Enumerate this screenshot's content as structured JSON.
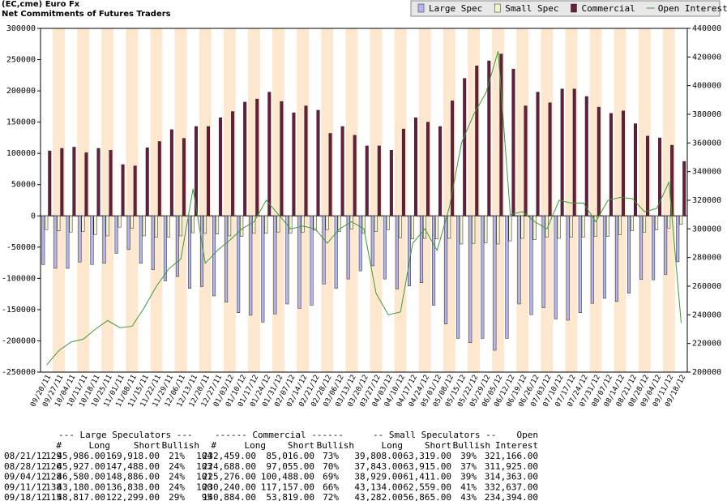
{
  "chart_data": {
    "type": "bar",
    "title": "(EC,cme) Euro Fx",
    "subtitle": "Net Commitments of Futures Traders",
    "categories": [
      "09/20/11",
      "09/27/11",
      "10/04/11",
      "10/11/11",
      "10/18/11",
      "10/25/11",
      "11/01/11",
      "11/08/11",
      "11/15/11",
      "11/22/11",
      "11/29/11",
      "12/06/11",
      "12/13/11",
      "12/20/11",
      "12/27/11",
      "01/03/12",
      "01/10/12",
      "01/17/12",
      "01/24/12",
      "01/31/12",
      "02/07/12",
      "02/14/12",
      "02/21/12",
      "02/28/12",
      "03/06/12",
      "03/13/12",
      "03/20/12",
      "03/27/12",
      "04/03/12",
      "04/10/12",
      "04/17/12",
      "04/24/12",
      "05/01/12",
      "05/08/12",
      "05/15/12",
      "05/22/12",
      "05/29/12",
      "06/05/12",
      "06/12/12",
      "06/19/12",
      "06/26/12",
      "07/03/12",
      "07/10/12",
      "07/17/12",
      "07/24/12",
      "07/31/12",
      "08/07/12",
      "08/14/12",
      "08/21/12",
      "08/28/12",
      "09/04/12",
      "09/11/12",
      "09/18/12"
    ],
    "series": [
      {
        "name": "Large Spec",
        "color": "#b4b4ec",
        "values": [
          -78000,
          -84000,
          -84000,
          -74000,
          -78000,
          -76000,
          -60000,
          -54000,
          -76000,
          -86000,
          -104000,
          -97000,
          -116000,
          -113000,
          -128000,
          -138000,
          -155000,
          -159000,
          -170000,
          -157000,
          -141000,
          -148000,
          -143000,
          -109000,
          -116000,
          -101000,
          -88000,
          -80000,
          -101000,
          -117000,
          -112000,
          -107000,
          -143000,
          -173000,
          -196000,
          -203000,
          -196000,
          -215000,
          -196000,
          -141000,
          -158000,
          -147000,
          -165000,
          -167000,
          -155000,
          -140000,
          -132000,
          -137000,
          -123932,
          -101561,
          -102306,
          -93658,
          -73482
        ]
      },
      {
        "name": "Small Spec",
        "color": "#f6f4cc",
        "values": [
          -22000,
          -24000,
          -26000,
          -25000,
          -30000,
          -32000,
          -18000,
          -20000,
          -32000,
          -34000,
          -34000,
          -32000,
          -27000,
          -28000,
          -29000,
          -32000,
          -33000,
          -28000,
          -28000,
          -26000,
          -28000,
          -26000,
          -23000,
          -22000,
          -25000,
          -21000,
          -28000,
          -25000,
          -22000,
          -35000,
          -37000,
          -36000,
          -37000,
          -36000,
          -45000,
          -44000,
          -43000,
          -45000,
          -40000,
          -36000,
          -38000,
          -34000,
          -36000,
          -34000,
          -34000,
          -33000,
          -33000,
          -30000,
          -23511,
          -26072,
          -22482,
          -19425,
          -13583
        ]
      },
      {
        "name": "Commercial",
        "color": "#6a1c3c",
        "values": [
          104000,
          108000,
          110000,
          101000,
          108000,
          105000,
          82000,
          80000,
          109000,
          119000,
          138000,
          124000,
          143000,
          143000,
          157000,
          167000,
          182000,
          187000,
          198000,
          183000,
          165000,
          176000,
          169000,
          132000,
          143000,
          129000,
          112000,
          112000,
          105000,
          139000,
          157000,
          150000,
          143000,
          184000,
          220000,
          240000,
          248000,
          259000,
          235000,
          176000,
          198000,
          181000,
          203000,
          203000,
          191000,
          174000,
          164000,
          168000,
          147443,
          127633,
          124788,
          113083,
          87065
        ]
      },
      {
        "name": "Open Interest",
        "color": "#3a9a3a",
        "axis": "y2",
        "values": [
          205000,
          215000,
          221000,
          223000,
          230000,
          236000,
          231000,
          232000,
          245000,
          260000,
          272000,
          279000,
          328000,
          276000,
          285000,
          292000,
          300000,
          305000,
          320000,
          310000,
          300000,
          302000,
          300000,
          290000,
          300000,
          305000,
          300000,
          255000,
          240000,
          242000,
          290000,
          300000,
          285000,
          315000,
          360000,
          380000,
          395000,
          424000,
          310000,
          312000,
          305000,
          300000,
          320000,
          318000,
          318000,
          305000,
          320000,
          322000,
          321166,
          311925,
          314363,
          332637,
          234394
        ]
      }
    ],
    "ylim": [
      -250000,
      300000
    ],
    "yticks": [
      -250000,
      -200000,
      -150000,
      -100000,
      -50000,
      0,
      50000,
      100000,
      150000,
      200000,
      250000,
      300000
    ],
    "y2lim": [
      200000,
      440000
    ],
    "y2ticks": [
      200000,
      220000,
      240000,
      260000,
      280000,
      300000,
      320000,
      340000,
      360000,
      380000,
      400000,
      420000,
      440000
    ],
    "legend": "top-right"
  },
  "table": {
    "header1": [
      "--- Large Speculators ---",
      "------ Commercial ------",
      "-- Small Speculators --",
      "Open"
    ],
    "header2": [
      "#",
      "Long",
      "Short",
      "Bullish",
      "#",
      "Long",
      "Short",
      "Bullish",
      "Long",
      "Short",
      "Bullish",
      "Interest"
    ],
    "rows": [
      [
        "08/21/12",
        "129",
        "45,986.00",
        "169,918.00",
        "21%",
        "104",
        "232,459.00",
        "85,016.00",
        "73%",
        "39,808.00",
        "63,319.00",
        "39%",
        "321,166.00"
      ],
      [
        "08/28/12",
        "126",
        "45,927.00",
        "147,488.00",
        "24%",
        "103",
        "224,688.00",
        "97,055.00",
        "70%",
        "37,843.00",
        "63,915.00",
        "37%",
        "311,925.00"
      ],
      [
        "09/04/12",
        "128",
        "46,580.00",
        "148,886.00",
        "24%",
        "101",
        "225,276.00",
        "100,488.00",
        "69%",
        "38,929.00",
        "61,411.00",
        "39%",
        "314,363.00"
      ],
      [
        "09/11/12",
        "138",
        "43,180.00",
        "136,838.00",
        "24%",
        "100",
        "230,240.00",
        "117,157.00",
        "66%",
        "43,134.00",
        "62,559.00",
        "41%",
        "332,637.00"
      ],
      [
        "09/18/12",
        "115",
        "48,817.00",
        "122,299.00",
        "29%",
        "95",
        "140,884.00",
        "53,819.00",
        "72%",
        "43,282.00",
        "56,865.00",
        "43%",
        "234,394.00"
      ]
    ]
  }
}
